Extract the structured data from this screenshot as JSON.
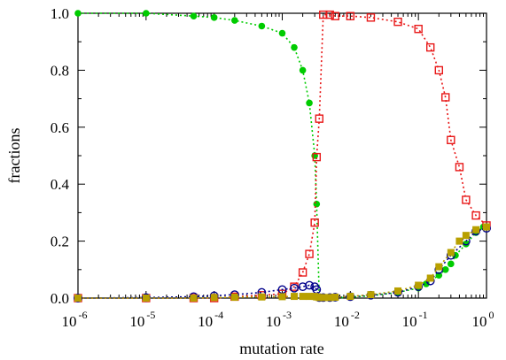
{
  "chart_data": {
    "type": "scatter",
    "title": "",
    "xlabel": "mutation rate",
    "ylabel": "fractions",
    "xscale": "log",
    "xlim": [
      1e-06,
      1
    ],
    "ylim": [
      0,
      1
    ],
    "grid": false,
    "legend": "none",
    "x_ticks": [
      {
        "base": "10",
        "exp": "-6",
        "value": 1e-06
      },
      {
        "base": "10",
        "exp": "-5",
        "value": 1e-05
      },
      {
        "base": "10",
        "exp": "-4",
        "value": 0.0001
      },
      {
        "base": "10",
        "exp": "-3",
        "value": 0.001
      },
      {
        "base": "10",
        "exp": "-2",
        "value": 0.01
      },
      {
        "base": "10",
        "exp": "-1",
        "value": 0.1
      },
      {
        "base": "10",
        "exp": "0",
        "value": 1
      }
    ],
    "y_ticks": [
      "0.0",
      "0.2",
      "0.4",
      "0.6",
      "0.8",
      "1.0"
    ],
    "series": [
      {
        "color": "#00cc00",
        "marker": "filled-circle",
        "x": [
          1e-06,
          1e-05,
          5e-05,
          0.0001,
          0.0002,
          0.0005,
          0.001,
          0.0015,
          0.002,
          0.0025,
          0.003,
          0.0032,
          0.0035,
          0.004,
          0.005,
          0.006,
          0.01,
          0.02,
          0.05,
          0.1,
          0.13,
          0.2,
          0.25,
          0.3,
          0.35,
          0.5,
          0.7,
          0.9
        ],
        "y": [
          1.0,
          1.0,
          0.99,
          0.985,
          0.975,
          0.955,
          0.93,
          0.88,
          0.8,
          0.685,
          0.5,
          0.33,
          0.0,
          0.0,
          0.0,
          0.0,
          0.003,
          0.008,
          0.02,
          0.035,
          0.05,
          0.08,
          0.1,
          0.12,
          0.15,
          0.19,
          0.23,
          0.25
        ]
      },
      {
        "color": "#e81818",
        "marker": "open-square",
        "x": [
          1e-06,
          1e-05,
          5e-05,
          0.0001,
          0.0002,
          0.0005,
          0.001,
          0.0015,
          0.002,
          0.0025,
          0.003,
          0.0032,
          0.0035,
          0.004,
          0.005,
          0.006,
          0.01,
          0.02,
          0.05,
          0.1,
          0.15,
          0.2,
          0.25,
          0.3,
          0.4,
          0.5,
          0.7,
          1.0
        ],
        "y": [
          0.0,
          0.0,
          0.0,
          0.0,
          0.005,
          0.01,
          0.015,
          0.04,
          0.09,
          0.155,
          0.265,
          0.495,
          0.63,
          0.995,
          0.995,
          0.99,
          0.99,
          0.985,
          0.97,
          0.945,
          0.88,
          0.8,
          0.705,
          0.555,
          0.46,
          0.345,
          0.29,
          0.255
        ]
      },
      {
        "color": "#00008b",
        "marker": "open-circle",
        "x": [
          1e-06,
          1e-05,
          5e-05,
          0.0001,
          0.0002,
          0.0005,
          0.001,
          0.0015,
          0.002,
          0.0025,
          0.003,
          0.0032,
          0.0035,
          0.004,
          0.005,
          0.006,
          0.01,
          0.02,
          0.05,
          0.1,
          0.15,
          0.2,
          0.3,
          0.5,
          0.7,
          1.0
        ],
        "y": [
          0.0,
          0.002,
          0.005,
          0.008,
          0.012,
          0.02,
          0.03,
          0.035,
          0.04,
          0.045,
          0.04,
          0.03,
          0.002,
          0.002,
          0.002,
          0.003,
          0.005,
          0.01,
          0.02,
          0.04,
          0.06,
          0.1,
          0.15,
          0.2,
          0.235,
          0.245
        ]
      },
      {
        "color": "#b8a000",
        "marker": "filled-square",
        "x": [
          1e-06,
          1e-05,
          5e-05,
          0.0001,
          0.0002,
          0.0005,
          0.001,
          0.0015,
          0.002,
          0.0025,
          0.003,
          0.0032,
          0.0035,
          0.004,
          0.005,
          0.006,
          0.01,
          0.02,
          0.05,
          0.1,
          0.15,
          0.2,
          0.3,
          0.4,
          0.5,
          0.7,
          1.0
        ],
        "y": [
          0.0,
          0.0,
          0.0,
          0.002,
          0.003,
          0.004,
          0.005,
          0.006,
          0.006,
          0.006,
          0.006,
          0.004,
          0.002,
          0.002,
          0.002,
          0.003,
          0.006,
          0.012,
          0.025,
          0.045,
          0.07,
          0.11,
          0.16,
          0.2,
          0.22,
          0.24,
          0.25
        ]
      }
    ]
  }
}
